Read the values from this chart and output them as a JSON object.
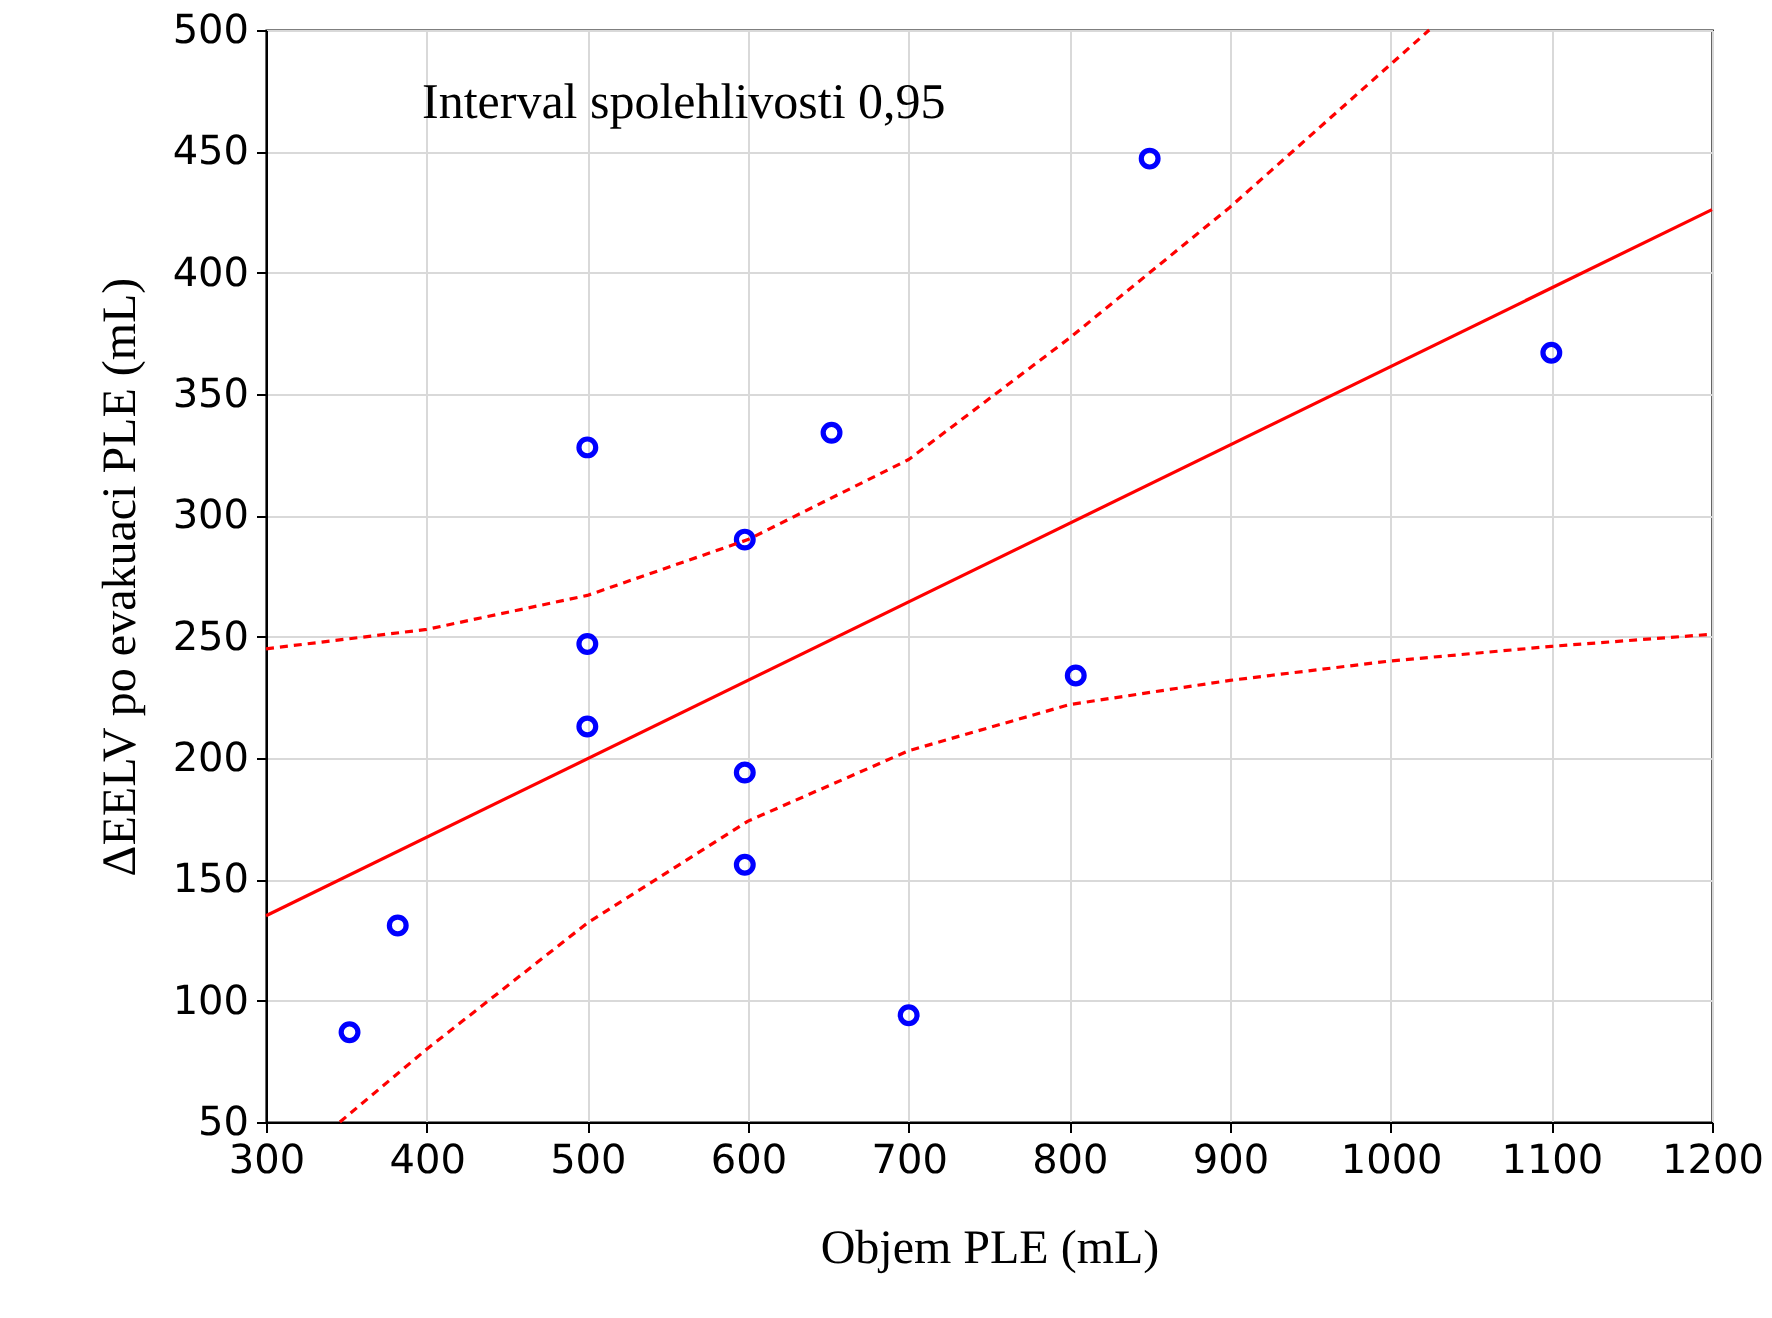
{
  "chart_data": {
    "type": "scatter",
    "xlabel": "Objem PLE (mL)",
    "ylabel": "ΔEELV po evakuaci PLE (mL)",
    "annotations": [
      "Interval spolehlivosti 0,95"
    ],
    "xlim": [
      300,
      1200
    ],
    "xticks": [
      300,
      400,
      500,
      600,
      700,
      800,
      900,
      1000,
      1100,
      1200
    ],
    "ylim": [
      50,
      500
    ],
    "yticks": [
      50,
      100,
      150,
      200,
      250,
      300,
      350,
      400,
      450,
      500
    ],
    "grid": true,
    "series": [
      {
        "color": "#0000ff",
        "marker": "circle",
        "x": [
          352,
          382,
          500,
          500,
          500,
          598,
          598,
          598,
          652,
          700,
          804,
          850,
          1100
        ],
        "values": [
          87,
          131,
          213,
          247,
          328,
          290,
          194,
          156,
          334,
          94,
          234,
          447,
          367
        ]
      },
      {
        "type": "line",
        "color": "#ff0000",
        "line_style": "solid",
        "marker": "none",
        "x": [
          300,
          1200
        ],
        "values": [
          135,
          426
        ]
      },
      {
        "type": "line",
        "color": "#ff0000",
        "line_style": "dashed",
        "marker": "none",
        "x": [
          300,
          400,
          500,
          600,
          700,
          800,
          900,
          1024
        ],
        "values": [
          245,
          253,
          267,
          290,
          323,
          373,
          427,
          500
        ]
      },
      {
        "type": "line",
        "color": "#ff0000",
        "line_style": "dashed",
        "marker": "none",
        "x": [
          346,
          400,
          500,
          600,
          700,
          800,
          900,
          1000,
          1100,
          1200
        ],
        "values": [
          50,
          80,
          132,
          174,
          203,
          222,
          232,
          240,
          246,
          251
        ]
      }
    ]
  }
}
